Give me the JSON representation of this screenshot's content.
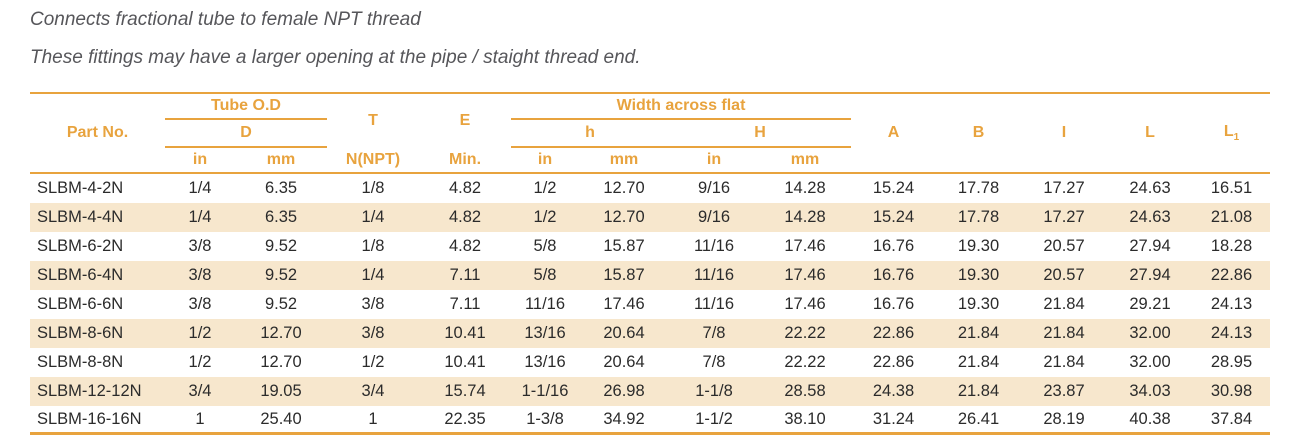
{
  "colors": {
    "accent": "#E8A33E",
    "stripe_row": "#F7E7CD",
    "body_text": "#2B2B2B",
    "intro_text": "#56565A"
  },
  "intro": {
    "line1": "Connects fractional tube to female NPT thread",
    "line2": "These fittings may have a larger opening at the pipe / staight thread end."
  },
  "table": {
    "headers": {
      "part_no": "Part No.",
      "tube_od": "Tube O.D",
      "d": "D",
      "t": "T",
      "e": "E",
      "waf": "Width across flat",
      "h": "h",
      "H": "H",
      "n_npt": "N(NPT)",
      "min": "Min.",
      "in": "in",
      "mm": "mm",
      "a": "A",
      "b": "B",
      "i": "I",
      "l": "L",
      "l1_base": "L",
      "l1_sub": "1"
    },
    "rows": [
      [
        "SLBM-4-2N",
        "1/4",
        "6.35",
        "1/8",
        "4.82",
        "1/2",
        "12.70",
        "9/16",
        "14.28",
        "15.24",
        "17.78",
        "17.27",
        "24.63",
        "16.51"
      ],
      [
        "SLBM-4-4N",
        "1/4",
        "6.35",
        "1/4",
        "4.82",
        "1/2",
        "12.70",
        "9/16",
        "14.28",
        "15.24",
        "17.78",
        "17.27",
        "24.63",
        "21.08"
      ],
      [
        "SLBM-6-2N",
        "3/8",
        "9.52",
        "1/8",
        "4.82",
        "5/8",
        "15.87",
        "11/16",
        "17.46",
        "16.76",
        "19.30",
        "20.57",
        "27.94",
        "18.28"
      ],
      [
        "SLBM-6-4N",
        "3/8",
        "9.52",
        "1/4",
        "7.11",
        "5/8",
        "15.87",
        "11/16",
        "17.46",
        "16.76",
        "19.30",
        "20.57",
        "27.94",
        "22.86"
      ],
      [
        "SLBM-6-6N",
        "3/8",
        "9.52",
        "3/8",
        "7.11",
        "11/16",
        "17.46",
        "11/16",
        "17.46",
        "16.76",
        "19.30",
        "21.84",
        "29.21",
        "24.13"
      ],
      [
        "SLBM-8-6N",
        "1/2",
        "12.70",
        "3/8",
        "10.41",
        "13/16",
        "20.64",
        "7/8",
        "22.22",
        "22.86",
        "21.84",
        "21.84",
        "32.00",
        "24.13"
      ],
      [
        "SLBM-8-8N",
        "1/2",
        "12.70",
        "1/2",
        "10.41",
        "13/16",
        "20.64",
        "7/8",
        "22.22",
        "22.86",
        "21.84",
        "21.84",
        "32.00",
        "28.95"
      ],
      [
        "SLBM-12-12N",
        "3/4",
        "19.05",
        "3/4",
        "15.74",
        "1-1/16",
        "26.98",
        "1-1/8",
        "28.58",
        "24.38",
        "21.84",
        "23.87",
        "34.03",
        "30.98"
      ],
      [
        "SLBM-16-16N",
        "1",
        "25.40",
        "1",
        "22.35",
        "1-3/8",
        "34.92",
        "1-1/2",
        "38.10",
        "31.24",
        "26.41",
        "28.19",
        "40.38",
        "37.84"
      ]
    ]
  }
}
